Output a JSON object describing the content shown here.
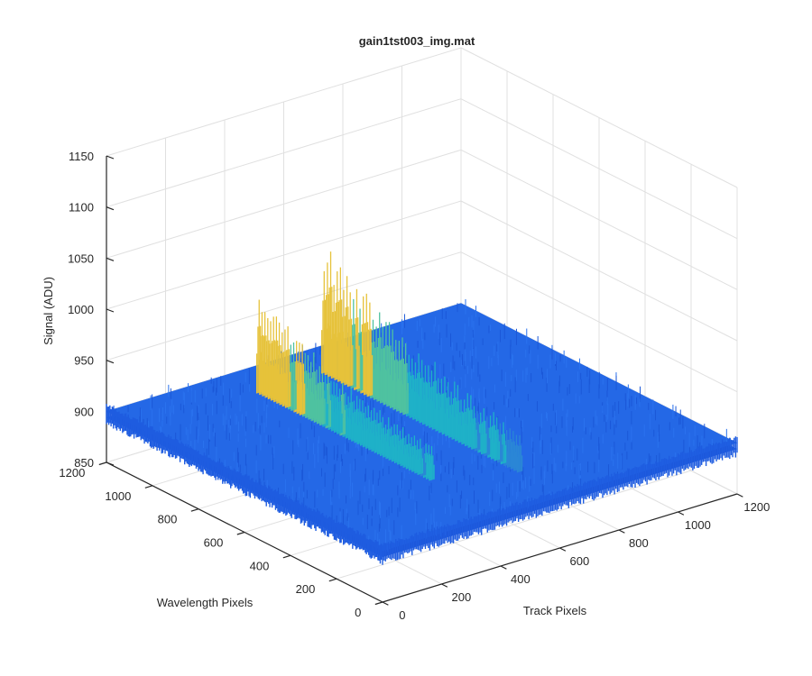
{
  "chart_data": {
    "type": "surface",
    "title": "gain1tst003_img.mat",
    "xlabel": "Track Pixels",
    "ylabel": "Wavelength Pixels",
    "zlabel": "Signal (ADU)",
    "xlim": [
      0,
      1200
    ],
    "ylim": [
      0,
      1200
    ],
    "zlim": [
      850,
      1150
    ],
    "xticks": [
      "0",
      "200",
      "400",
      "600",
      "800",
      "1000",
      "1200"
    ],
    "yticks": [
      "0",
      "200",
      "400",
      "600",
      "800",
      "1000",
      "1200"
    ],
    "zticks": [
      "850",
      "900",
      "950",
      "1000",
      "1050",
      "1100",
      "1150"
    ],
    "grid": true,
    "colormap": "parula",
    "background_level": 900,
    "peaks": [
      {
        "track_pixel": 400,
        "wavelength_from": 300,
        "wavelength_to": 1050,
        "max_signal": 985
      },
      {
        "track_pixel": 620,
        "wavelength_from": 200,
        "wavelength_to": 1050,
        "max_signal": 1010
      }
    ]
  }
}
